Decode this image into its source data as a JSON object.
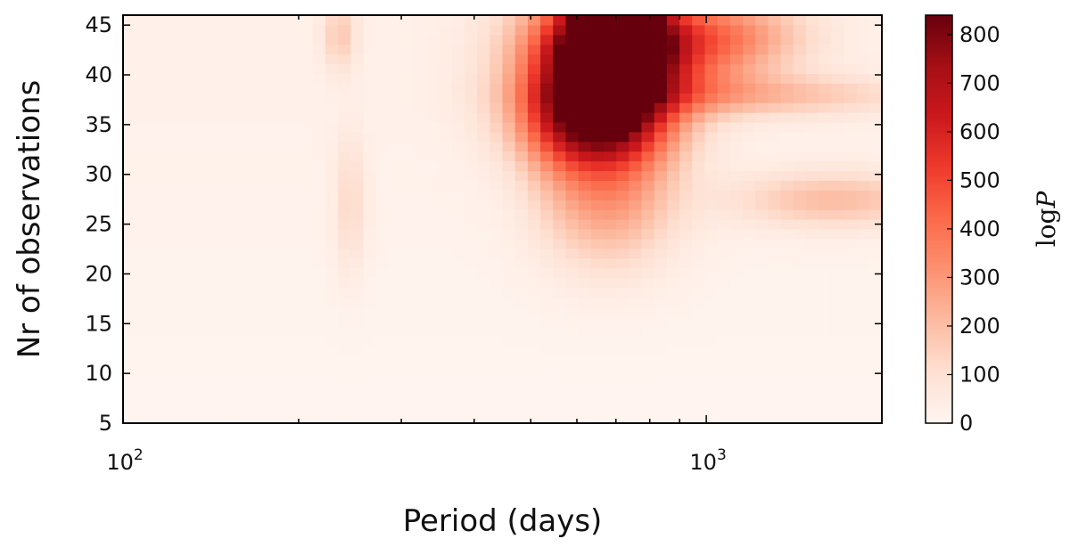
{
  "chart_data": {
    "type": "heatmap",
    "title": "",
    "xlabel": "Period (days)",
    "ylabel": "Nr of observations",
    "xscale": "log",
    "xlim": [
      100,
      2000
    ],
    "ylim": [
      5,
      46
    ],
    "x_ticks": [
      {
        "value": 100,
        "label": "10",
        "exp": "2"
      },
      {
        "value": 1000,
        "label": "10",
        "exp": "3"
      }
    ],
    "y_ticks": [
      5,
      10,
      15,
      20,
      25,
      30,
      35,
      40,
      45
    ],
    "colorbar": {
      "label_base": "log",
      "label_var": "P",
      "min": 0,
      "max": 840,
      "ticks": [
        0,
        100,
        200,
        300,
        400,
        500,
        600,
        700,
        800
      ],
      "colormap": "Reds"
    },
    "hotspots": [
      {
        "period": 700,
        "obs": 45,
        "value": 840,
        "dperiod": 0.05,
        "dobs": 3
      },
      {
        "period": 690,
        "obs": 40,
        "value": 650,
        "dperiod": 0.07,
        "dobs": 5
      },
      {
        "period": 630,
        "obs": 41,
        "value": 380,
        "dperiod": 0.1,
        "dobs": 5
      },
      {
        "period": 880,
        "obs": 43,
        "value": 330,
        "dperiod": 0.1,
        "dobs": 3.5
      },
      {
        "period": 1150,
        "obs": 44,
        "value": 170,
        "dperiod": 0.09,
        "dobs": 2.5
      },
      {
        "period": 650,
        "obs": 35,
        "value": 320,
        "dperiod": 0.09,
        "dobs": 3
      },
      {
        "period": 680,
        "obs": 28,
        "value": 270,
        "dperiod": 0.08,
        "dobs": 5
      },
      {
        "period": 1150,
        "obs": 38,
        "value": 190,
        "dperiod": 0.2,
        "dobs": 1.5
      },
      {
        "period": 1650,
        "obs": 27.5,
        "value": 190,
        "dperiod": 0.12,
        "dobs": 2
      },
      {
        "period": 235,
        "obs": 44,
        "value": 150,
        "dperiod": 0.02,
        "dobs": 2.5
      },
      {
        "period": 245,
        "obs": 27,
        "value": 110,
        "dperiod": 0.02,
        "dobs": 5
      },
      {
        "period": 560,
        "obs": 38,
        "value": 150,
        "dperiod": 0.05,
        "dobs": 6
      }
    ],
    "background_value": 25
  }
}
